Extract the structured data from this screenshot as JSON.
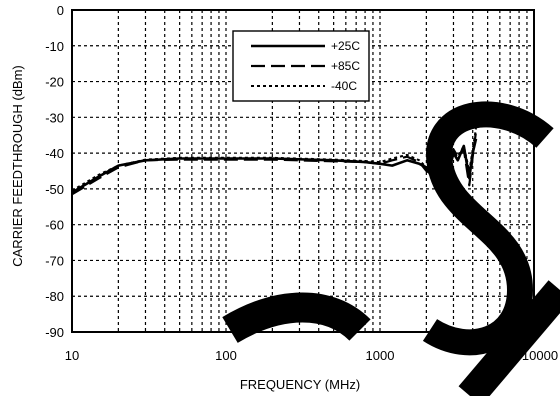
{
  "chart_data": {
    "type": "line",
    "title": "",
    "xlabel": "FREQUENCY (MHz)",
    "ylabel": "CARRIER FEEDTHROUGH (dBm)",
    "xscale": "log",
    "xlim": [
      10,
      10000
    ],
    "ylim": [
      -90,
      0
    ],
    "xticks": [
      10,
      100,
      1000,
      10000
    ],
    "xtick_labels": [
      "10",
      "100",
      "1000",
      "10000"
    ],
    "yticks": [
      0,
      -10,
      -20,
      -30,
      -40,
      -50,
      -60,
      -70,
      -80,
      -90
    ],
    "ytick_labels": [
      "0",
      "-10",
      "-20",
      "-30",
      "-40",
      "-50",
      "-60",
      "-70",
      "-80",
      "-90"
    ],
    "grid": true,
    "legend_position": "top-right",
    "series": [
      {
        "name": "+25C",
        "style": "solid",
        "x": [
          10,
          12,
          15,
          20,
          30,
          50,
          100,
          200,
          500,
          800,
          1000,
          1200,
          1500,
          1800,
          2000,
          2200,
          2500,
          2800,
          3000,
          3200,
          3500,
          3800,
          4000,
          4200
        ],
        "y": [
          -51,
          -49,
          -46.5,
          -43.5,
          -42,
          -41.5,
          -41.5,
          -41.5,
          -42,
          -42.5,
          -43,
          -43.5,
          -42,
          -43,
          -44,
          -47,
          -42,
          -45,
          -40,
          -42,
          -38,
          -47,
          -40,
          -36
        ]
      },
      {
        "name": "+85C",
        "style": "dashed",
        "x": [
          10,
          12,
          15,
          20,
          30,
          50,
          100,
          200,
          500,
          800,
          1000,
          1200,
          1500,
          1800,
          2000,
          2200,
          2500,
          2800,
          3000,
          3200,
          3500,
          3800,
          4000,
          4200
        ],
        "y": [
          -51.5,
          -49.5,
          -47,
          -44,
          -42,
          -41.8,
          -41.8,
          -41.8,
          -42.3,
          -42.5,
          -43,
          -42,
          -41,
          -42.5,
          -45,
          -46,
          -41,
          -44,
          -39,
          -41,
          -39,
          -49,
          -41,
          -34
        ]
      },
      {
        "name": "-40C",
        "style": "dotted",
        "x": [
          10,
          12,
          15,
          20,
          30,
          50,
          100,
          200,
          500,
          800,
          1000,
          1200,
          1500,
          1800,
          2000,
          2200,
          2500,
          2800,
          3000,
          3200,
          3500,
          3800,
          4000,
          4200
        ],
        "y": [
          -50.5,
          -48.5,
          -46,
          -43.5,
          -41.8,
          -41.3,
          -41.3,
          -41.3,
          -41.8,
          -42.2,
          -42.5,
          -41.5,
          -40.5,
          -42,
          -44,
          -47.5,
          -40.5,
          -43,
          -40,
          -41,
          -38,
          -45,
          -39,
          -33
        ]
      }
    ]
  },
  "colors": {
    "line": "#000000",
    "grid": "#000000",
    "background": "#ffffff",
    "watermark": "#000000"
  }
}
